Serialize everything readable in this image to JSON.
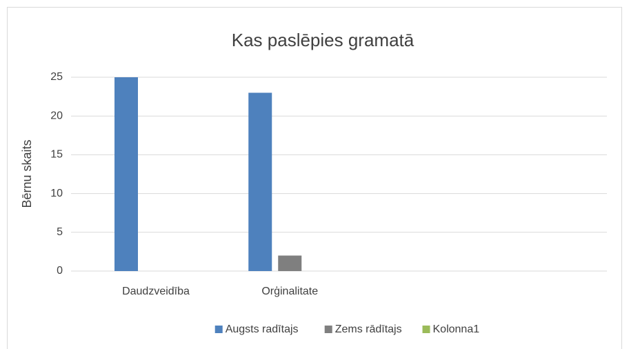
{
  "chart_data": {
    "type": "bar",
    "title": "Kas paslēpies gramatā",
    "y_label": "Bērnu skaits",
    "categories": [
      "Daudzveidība",
      "Orģinalitate",
      null,
      null
    ],
    "series": [
      {
        "name": "Augsts radītajs",
        "color": "#4e81bd",
        "values": [
          25,
          23,
          null,
          null
        ]
      },
      {
        "name": "Zems rādītajs",
        "color": "#7f7f7f",
        "values": [
          null,
          2,
          null,
          null
        ]
      },
      {
        "name": "Kolonna1",
        "color": "#9bbb59",
        "values": [
          null,
          null,
          null,
          null
        ]
      }
    ],
    "ylim": [
      0,
      25
    ],
    "yticks": [
      0,
      5,
      10,
      15,
      20,
      25
    ],
    "grid": true,
    "legend": "bottom"
  }
}
